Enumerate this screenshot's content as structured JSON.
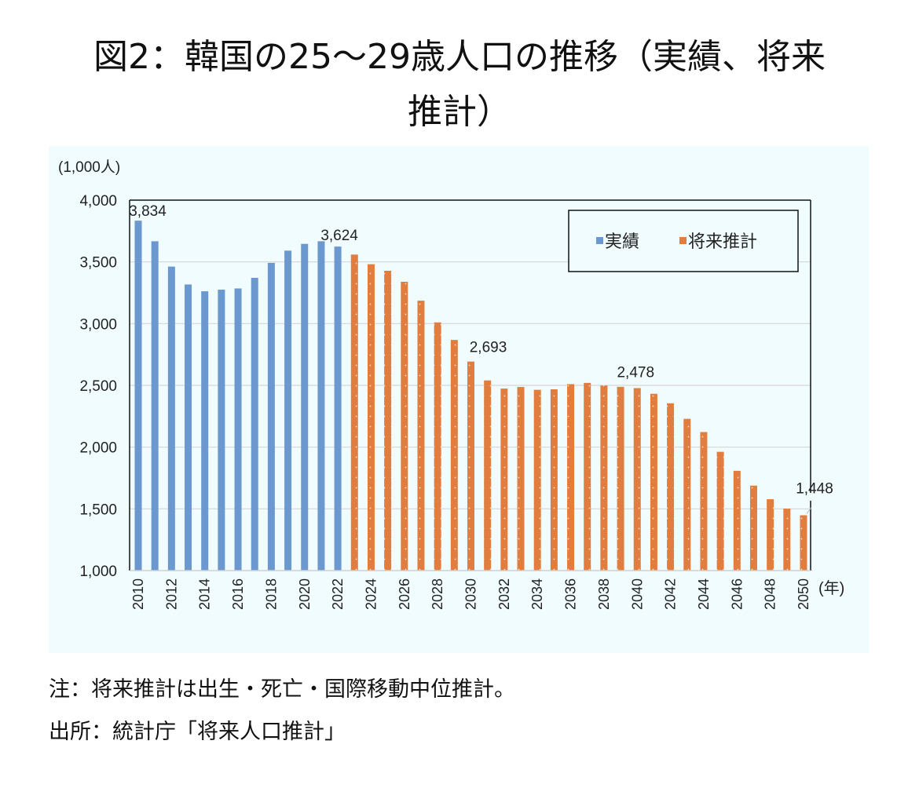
{
  "title": {
    "line1": "図2：韓国の25〜29歳人口の推移（実績、将来",
    "line2": "推計）"
  },
  "notes": {
    "note": "注：将来推計は出生・死亡・国際移動中位推計。",
    "source": "出所：統計庁「将来人口推計」"
  },
  "chart_data": {
    "type": "bar",
    "title": "韓国の25〜29歳人口の推移（実績、将来推計）",
    "ylabel": "(1,000人)",
    "xlabel": "(年)",
    "ylim": [
      1000,
      4000
    ],
    "yticks": [
      1000,
      1500,
      2000,
      2500,
      3000,
      3500,
      4000
    ],
    "ytick_labels": [
      "1,000",
      "1,500",
      "2,000",
      "2,500",
      "3,000",
      "3,500",
      "4,000"
    ],
    "grid": true,
    "legend_position": "top-right",
    "colors": {
      "actual": "#6a98cf",
      "projection": "#e07d3f"
    },
    "categories": [
      "2010",
      "2011",
      "2012",
      "2013",
      "2014",
      "2015",
      "2016",
      "2017",
      "2018",
      "2019",
      "2020",
      "2021",
      "2022",
      "2023",
      "2024",
      "2025",
      "2026",
      "2027",
      "2028",
      "2029",
      "2030",
      "2031",
      "2032",
      "2033",
      "2034",
      "2035",
      "2036",
      "2037",
      "2038",
      "2039",
      "2040",
      "2041",
      "2042",
      "2043",
      "2044",
      "2045",
      "2046",
      "2047",
      "2048",
      "2049",
      "2050"
    ],
    "xtick_labels": [
      "2010",
      "2012",
      "2014",
      "2016",
      "2018",
      "2020",
      "2022",
      "2024",
      "2026",
      "2028",
      "2030",
      "2032",
      "2034",
      "2036",
      "2038",
      "2040",
      "2042",
      "2044",
      "2046",
      "2048",
      "2050"
    ],
    "series": [
      {
        "name": "実績",
        "key": "actual",
        "values": [
          3834,
          3667,
          3462,
          3317,
          3262,
          3275,
          3285,
          3371,
          3492,
          3591,
          3646,
          3667,
          3624,
          null,
          null,
          null,
          null,
          null,
          null,
          null,
          null,
          null,
          null,
          null,
          null,
          null,
          null,
          null,
          null,
          null,
          null,
          null,
          null,
          null,
          null,
          null,
          null,
          null,
          null,
          null,
          null
        ]
      },
      {
        "name": "将来推計",
        "key": "projection",
        "values": [
          null,
          null,
          null,
          null,
          null,
          null,
          null,
          null,
          null,
          null,
          null,
          null,
          null,
          3559,
          3481,
          3428,
          3339,
          3186,
          3010,
          2868,
          2693,
          2540,
          2474,
          2487,
          2464,
          2468,
          2510,
          2520,
          2499,
          2488,
          2478,
          2432,
          2355,
          2229,
          2122,
          1962,
          1808,
          1688,
          1578,
          1502,
          1448
        ]
      }
    ],
    "data_labels": [
      {
        "category": "2010",
        "text": "3,834"
      },
      {
        "category": "2022",
        "text": "3,624"
      },
      {
        "category": "2030",
        "text": "2,693"
      },
      {
        "category": "2040",
        "text": "2,478"
      },
      {
        "category": "2050",
        "text": "1,448"
      }
    ]
  }
}
